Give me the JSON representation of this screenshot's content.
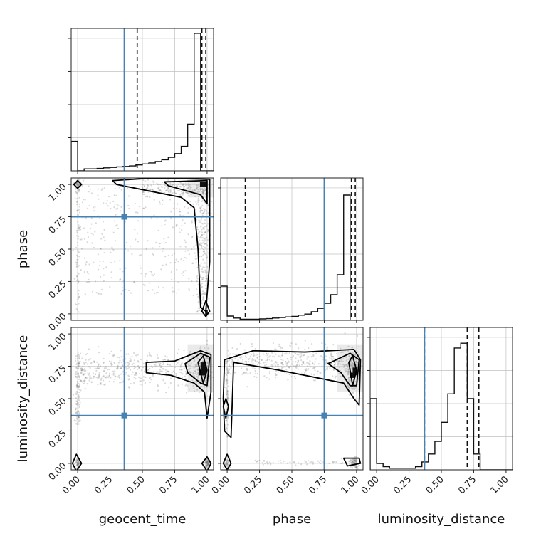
{
  "chart_data": {
    "type": "corner",
    "parameters": [
      "geocent_time",
      "phase",
      "luminosity_distance"
    ],
    "axis_labels": {
      "x": [
        "geocent_time",
        "phase",
        "luminosity_distance"
      ],
      "y": [
        "phase",
        "luminosity_distance"
      ]
    },
    "tick_values": [
      0.0,
      0.25,
      0.5,
      0.75,
      1.0
    ],
    "tick_labels": [
      "0.00",
      "0.25",
      "0.50",
      "0.75",
      "1.00"
    ],
    "axis_range": [
      -0.05,
      1.05
    ],
    "grid": true,
    "injection": {
      "color": "#4682b4",
      "values": {
        "geocent_time": 0.36,
        "phase": 0.75,
        "luminosity_distance": 0.37
      }
    },
    "quantile_lines": {
      "geocent_time": [
        0.46,
        0.96,
        0.99
      ],
      "phase": [
        0.14,
        0.96,
        0.99
      ],
      "luminosity_distance": [
        0.37,
        0.7,
        0.79
      ]
    },
    "histograms": {
      "geocent_time": {
        "bin_edges": [
          -0.05,
          0.0,
          0.05,
          0.1,
          0.15,
          0.2,
          0.25,
          0.3,
          0.35,
          0.4,
          0.45,
          0.5,
          0.55,
          0.6,
          0.65,
          0.7,
          0.75,
          0.8,
          0.85,
          0.9,
          0.95,
          1.0,
          1.05
        ],
        "counts": [
          0.12,
          0.0,
          0.008,
          0.008,
          0.01,
          0.012,
          0.014,
          0.016,
          0.018,
          0.02,
          0.024,
          0.028,
          0.032,
          0.038,
          0.045,
          0.055,
          0.07,
          0.1,
          0.19,
          0.56,
          0.0,
          0.0
        ],
        "ylim": [
          0,
          0.58
        ]
      },
      "phase": {
        "bin_edges": [
          -0.05,
          0.0,
          0.05,
          0.1,
          0.15,
          0.2,
          0.25,
          0.3,
          0.35,
          0.4,
          0.45,
          0.5,
          0.55,
          0.6,
          0.65,
          0.7,
          0.75,
          0.8,
          0.85,
          0.9,
          0.95,
          1.0,
          1.05
        ],
        "counts": [
          0.12,
          0.015,
          0.008,
          0.004,
          0.004,
          0.004,
          0.005,
          0.006,
          0.008,
          0.01,
          0.012,
          0.014,
          0.018,
          0.022,
          0.03,
          0.042,
          0.06,
          0.09,
          0.16,
          0.44,
          0.0,
          0.0
        ],
        "ylim": [
          0,
          0.5
        ]
      },
      "luminosity_distance": {
        "bin_edges": [
          -0.05,
          0.0,
          0.05,
          0.1,
          0.15,
          0.2,
          0.25,
          0.3,
          0.35,
          0.4,
          0.45,
          0.5,
          0.55,
          0.6,
          0.65,
          0.7,
          0.75,
          0.8,
          0.85,
          0.9,
          0.95,
          1.0,
          1.05
        ],
        "counts": [
          0.45,
          0.04,
          0.02,
          0.01,
          0.01,
          0.01,
          0.01,
          0.02,
          0.05,
          0.1,
          0.18,
          0.3,
          0.48,
          0.77,
          0.8,
          0.45,
          0.1,
          0.0,
          0.0,
          0.0,
          0.0,
          0.0
        ],
        "ylim": [
          0,
          0.9
        ]
      }
    },
    "scatter_points": 900,
    "contour_levels": 3
  }
}
